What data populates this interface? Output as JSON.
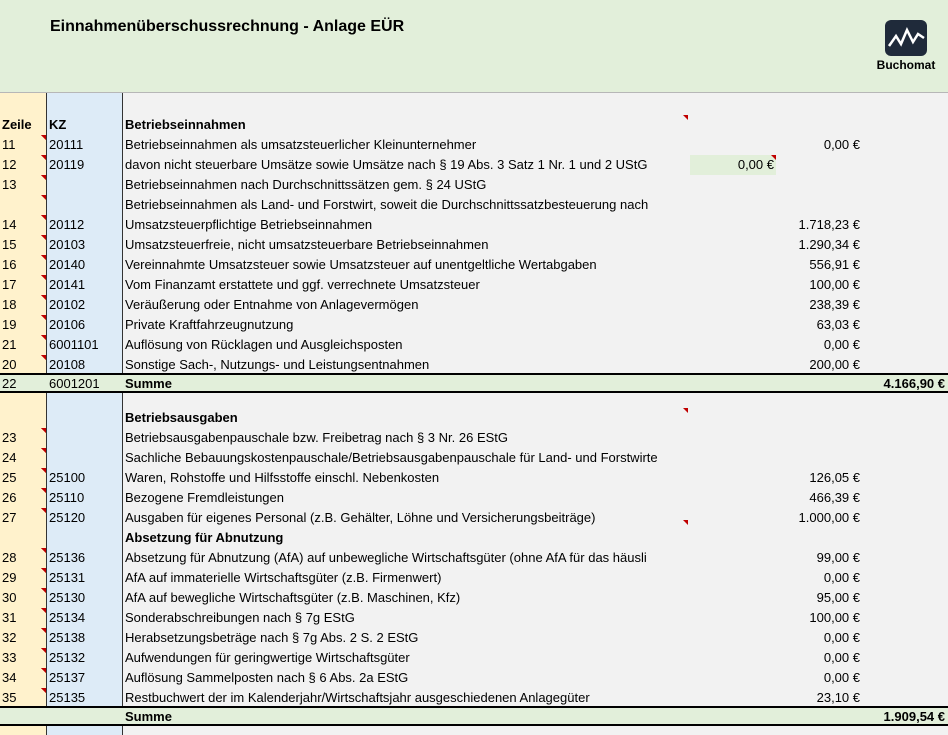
{
  "header": {
    "title": "Einnahmenüberschussrechnung - Anlage EÜR",
    "logo_text": "Buchomat"
  },
  "column_labels": {
    "zeile": "Zeile",
    "kz": "KZ"
  },
  "sections": [
    {
      "heading": "Betriebseinnahmen",
      "rows": [
        {
          "zeile": "11",
          "kz": "20111",
          "text": "Betriebseinnahmen als umsatzsteuerlicher Kleinunternehmer",
          "amount": "0,00 €"
        },
        {
          "zeile": "12",
          "kz": "20119",
          "text": "davon nicht steuerbare Umsätze sowie Umsätze nach § 19 Abs. 3 Satz 1 Nr. 1 und 2 UStG",
          "sub_amount": "0,00 €"
        },
        {
          "zeile": "13",
          "text": "Betriebseinnahmen nach Durchschnittssätzen gem. § 24 UStG"
        },
        {
          "text": "Betriebseinnahmen als Land- und Forstwirt, soweit die Durchschnittssatzbesteuerung nach"
        },
        {
          "zeile": "14",
          "kz": "20112",
          "text": "Umsatzsteuerpflichtige Betriebseinnahmen",
          "amount": "1.718,23 €"
        },
        {
          "zeile": "15",
          "kz": "20103",
          "text": "Umsatzsteuerfreie, nicht umsatzsteuerbare Betriebseinnahmen",
          "amount": "1.290,34 €"
        },
        {
          "zeile": "16",
          "kz": "20140",
          "text": "Vereinnahmte Umsatzsteuer sowie Umsatzsteuer auf unentgeltliche Wertabgaben",
          "amount": "556,91 €"
        },
        {
          "zeile": "17",
          "kz": "20141",
          "text": "Vom Finanzamt erstattete und ggf. verrechnete Umsatzsteuer",
          "amount": "100,00 €"
        },
        {
          "zeile": "18",
          "kz": "20102",
          "text": "Veräußerung oder Entnahme von Anlagevermögen",
          "amount": "238,39 €"
        },
        {
          "zeile": "19",
          "kz": "20106",
          "text": "Private Kraftfahrzeugnutzung",
          "amount": "63,03 €"
        },
        {
          "zeile": "21",
          "kz": "6001101",
          "text": "Auflösung von Rücklagen und Ausgleichsposten",
          "amount": "0,00 €"
        },
        {
          "zeile": "20",
          "kz": "20108",
          "text": "Sonstige Sach-, Nutzungs- und Leistungsentnahmen",
          "amount": "200,00 €"
        }
      ],
      "total": {
        "zeile": "22",
        "kz": "6001201",
        "text": "Summe",
        "amount": "4.166,90 €"
      }
    },
    {
      "heading": "Betriebsausgaben",
      "rows": [
        {
          "zeile": "23",
          "text": "Betriebsausgabenpauschale bzw. Freibetrag nach § 3 Nr. 26 EStG"
        },
        {
          "zeile": "24",
          "text": "Sachliche Bebauungskostenpauschale/Betriebsausgabenpauschale für Land- und Forstwirte"
        },
        {
          "zeile": "25",
          "kz": "25100",
          "text": "Waren, Rohstoffe und Hilfsstoffe einschl. Nebenkosten",
          "amount": "126,05 €"
        },
        {
          "zeile": "26",
          "kz": "25110",
          "text": "Bezogene Fremdleistungen",
          "amount": "466,39 €"
        },
        {
          "zeile": "27",
          "kz": "25120",
          "text": "Ausgaben für eigenes Personal (z.B. Gehälter, Löhne und Versicherungsbeiträge)",
          "amount": "1.000,00 €"
        },
        {
          "subheading": "Absetzung für Abnutzung"
        },
        {
          "zeile": "28",
          "kz": "25136",
          "text": "Absetzung für Abnutzung (AfA) auf unbewegliche Wirtschaftsgüter (ohne AfA für das häusli",
          "amount": "99,00 €"
        },
        {
          "zeile": "29",
          "kz": "25131",
          "text": "AfA auf immaterielle Wirtschaftsgüter (z.B. Firmenwert)",
          "amount": "0,00 €"
        },
        {
          "zeile": "30",
          "kz": "25130",
          "text": "AfA auf bewegliche Wirtschaftsgüter (z.B. Maschinen, Kfz)",
          "amount": "95,00 €"
        },
        {
          "zeile": "31",
          "kz": "25134",
          "text": "Sonderabschreibungen nach § 7g EStG",
          "amount": "100,00 €"
        },
        {
          "zeile": "32",
          "kz": "25138",
          "text": "Herabsetzungsbeträge nach § 7g Abs. 2 S. 2 EStG",
          "amount": "0,00 €"
        },
        {
          "zeile": "33",
          "kz": "25132",
          "text": "Aufwendungen für geringwertige Wirtschaftsgüter",
          "amount": "0,00 €"
        },
        {
          "zeile": "34",
          "kz": "25137",
          "text": "Auflösung Sammelposten nach § 6 Abs. 2a EStG",
          "amount": "0,00 €"
        },
        {
          "zeile": "35",
          "kz": "25135",
          "text": "Restbuchwert der im Kalenderjahr/Wirtschaftsjahr ausgeschiedenen Anlagegüter",
          "amount": "23,10 €"
        }
      ],
      "total": {
        "text": "Summe",
        "amount": "1.909,54 €"
      }
    }
  ]
}
